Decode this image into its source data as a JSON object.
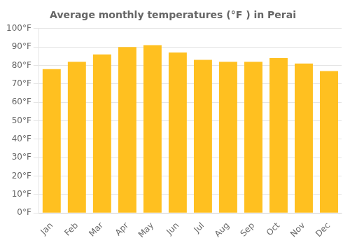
{
  "chart_data": {
    "type": "bar",
    "title": "Average monthly temperatures (°F ) in Perai",
    "categories": [
      "Jan",
      "Feb",
      "Mar",
      "Apr",
      "May",
      "Jun",
      "Jul",
      "Aug",
      "Sep",
      "Oct",
      "Nov",
      "Dec"
    ],
    "values": [
      78,
      82,
      86,
      90,
      91,
      87,
      83,
      82,
      82,
      84,
      81,
      77
    ],
    "color": "#FFC020",
    "ylim": [
      0,
      100
    ],
    "yticks": [
      {
        "value": 0,
        "label": "0°F"
      },
      {
        "value": 10,
        "label": "10°F"
      },
      {
        "value": 20,
        "label": "20°F"
      },
      {
        "value": 30,
        "label": "30°F"
      },
      {
        "value": 40,
        "label": "40°F"
      },
      {
        "value": 50,
        "label": "50°F"
      },
      {
        "value": 60,
        "label": "60°F"
      },
      {
        "value": 70,
        "label": "70°F"
      },
      {
        "value": 80,
        "label": "80°F"
      },
      {
        "value": 90,
        "label": "90°F"
      },
      {
        "value": 100,
        "label": "100°F"
      }
    ],
    "grid": true
  }
}
